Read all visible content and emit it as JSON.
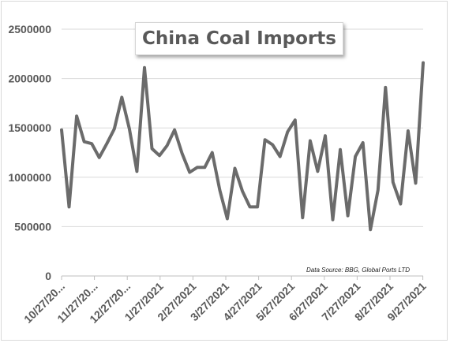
{
  "chart_data": {
    "type": "line",
    "title": "China Coal Imports",
    "source_note": "Data Source: BBG, Global Ports LTD",
    "ylim": [
      0,
      2500000
    ],
    "yticks": [
      "2500000",
      "2000000",
      "1500000",
      "1000000",
      "500000",
      "0"
    ],
    "ytick_values": [
      2500000,
      2000000,
      1500000,
      1000000,
      500000,
      0
    ],
    "xtick_labels": [
      "10/27/20...",
      "11/27/20...",
      "12/27/20...",
      "1/27/2021",
      "2/27/2021",
      "3/27/2021",
      "4/27/2021",
      "5/27/2021",
      "6/27/2021",
      "7/27/2021",
      "8/27/2021",
      "9/27/2021"
    ],
    "grid": true,
    "series": [
      {
        "color": "#6b6b6b",
        "values": [
          1480000,
          700000,
          1620000,
          1360000,
          1340000,
          1200000,
          1340000,
          1490000,
          1810000,
          1490000,
          1060000,
          2110000,
          1290000,
          1220000,
          1320000,
          1480000,
          1240000,
          1050000,
          1100000,
          1100000,
          1250000,
          870000,
          580000,
          1090000,
          860000,
          700000,
          700000,
          1380000,
          1330000,
          1210000,
          1460000,
          1580000,
          590000,
          1370000,
          1060000,
          1420000,
          570000,
          1280000,
          610000,
          1210000,
          1350000,
          470000,
          870000,
          1910000,
          950000,
          730000,
          1470000,
          940000,
          2160000
        ]
      }
    ]
  }
}
